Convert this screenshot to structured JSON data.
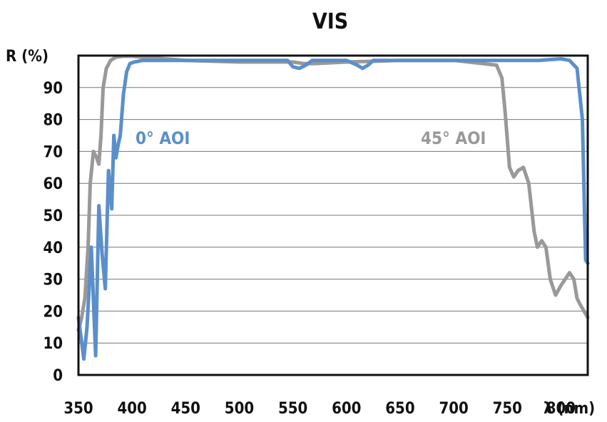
{
  "chart_data": {
    "type": "line",
    "title": "VIS",
    "ylabel": "R (%)",
    "xlabel": "λ (nm)",
    "xlim": [
      350,
      825
    ],
    "ylim": [
      0,
      100
    ],
    "xticks": [
      350,
      400,
      450,
      500,
      550,
      600,
      650,
      700,
      750,
      800
    ],
    "yticks": [
      0,
      10,
      20,
      30,
      40,
      50,
      60,
      70,
      80,
      90
    ],
    "grid": "horizontal",
    "legend": "inline",
    "series": [
      {
        "name": "0° AOI",
        "color": "#5b8fcb",
        "x": [
          350,
          355,
          358,
          362,
          366,
          369,
          372,
          375,
          378,
          381,
          383,
          385,
          387,
          389,
          392,
          395,
          398,
          402,
          410,
          420,
          450,
          500,
          545,
          550,
          556,
          562,
          568,
          575,
          600,
          610,
          615,
          620,
          625,
          650,
          700,
          750,
          780,
          800,
          808,
          815,
          820,
          823,
          825
        ],
        "y": [
          18,
          5,
          15,
          40,
          6,
          53,
          38,
          27,
          64,
          52,
          75,
          68,
          72,
          75,
          88,
          95,
          97.5,
          98,
          98.5,
          98.5,
          98.5,
          98.5,
          98.5,
          96.5,
          96,
          97,
          98.5,
          98.5,
          98.5,
          97,
          96,
          97,
          98.5,
          98.5,
          98.5,
          98.5,
          98.5,
          99,
          98.5,
          96,
          80,
          36,
          35
        ]
      },
      {
        "name": "45° AOI",
        "color": "#999999",
        "x": [
          350,
          353,
          356,
          359,
          361,
          364,
          367,
          369,
          371,
          373,
          376,
          380,
          385,
          392,
          400,
          410,
          450,
          500,
          550,
          560,
          570,
          600,
          650,
          700,
          740,
          745,
          748,
          752,
          756,
          760,
          765,
          770,
          775,
          778,
          782,
          786,
          790,
          795,
          800,
          808,
          812,
          815,
          818,
          825
        ],
        "y": [
          14,
          18,
          24,
          40,
          60,
          70,
          68,
          66,
          75,
          90,
          96,
          98.5,
          99.5,
          99.8,
          99.8,
          99.5,
          98.5,
          98,
          98,
          97.5,
          97.5,
          98,
          98.5,
          98.5,
          97,
          93,
          82,
          65,
          62,
          64,
          65,
          60,
          45,
          40,
          42,
          40,
          30,
          25,
          28,
          32,
          30,
          24,
          22,
          18
        ]
      }
    ]
  }
}
